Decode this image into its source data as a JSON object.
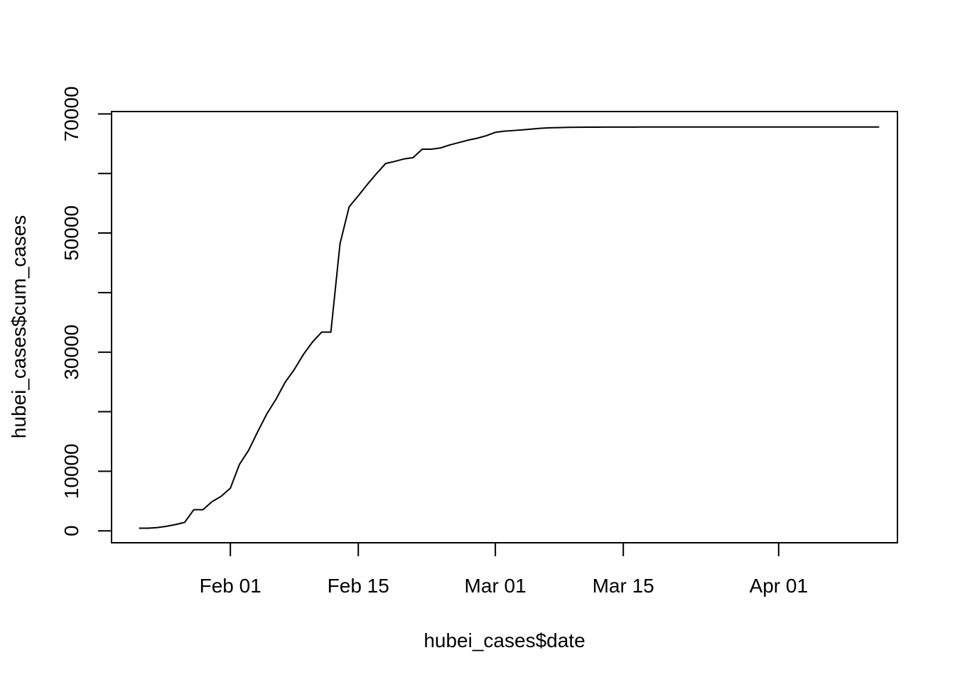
{
  "chart_data": {
    "type": "line",
    "title": "",
    "xlabel": "hubei_cases$date",
    "ylabel": "hubei_cases$cum_cases",
    "x_ticks": [
      {
        "date": "2020-02-01",
        "label": "Feb 01"
      },
      {
        "date": "2020-02-15",
        "label": "Feb 15"
      },
      {
        "date": "2020-03-01",
        "label": "Mar 01"
      },
      {
        "date": "2020-03-15",
        "label": "Mar 15"
      },
      {
        "date": "2020-04-01",
        "label": "Apr 01"
      }
    ],
    "y_ticks": [
      {
        "value": 0,
        "label": "0"
      },
      {
        "value": 10000,
        "label": "10000"
      },
      {
        "value": 30000,
        "label": "30000"
      },
      {
        "value": 50000,
        "label": "50000"
      },
      {
        "value": 70000,
        "label": "70000"
      }
    ],
    "xlim": [
      "2020-01-19",
      "2020-04-14"
    ],
    "ylim": [
      -2000,
      70400
    ],
    "grid": false,
    "line_color": "#000000",
    "series": [
      {
        "x": [
          "2020-01-22",
          "2020-01-23",
          "2020-01-24",
          "2020-01-25",
          "2020-01-26",
          "2020-01-27",
          "2020-01-28",
          "2020-01-29",
          "2020-01-30",
          "2020-01-31",
          "2020-02-01",
          "2020-02-02",
          "2020-02-03",
          "2020-02-04",
          "2020-02-05",
          "2020-02-06",
          "2020-02-07",
          "2020-02-08",
          "2020-02-09",
          "2020-02-10",
          "2020-02-11",
          "2020-02-12",
          "2020-02-13",
          "2020-02-14",
          "2020-02-15",
          "2020-02-16",
          "2020-02-17",
          "2020-02-18",
          "2020-02-19",
          "2020-02-20",
          "2020-02-21",
          "2020-02-22",
          "2020-02-23",
          "2020-02-24",
          "2020-02-25",
          "2020-02-26",
          "2020-02-27",
          "2020-02-28",
          "2020-02-29",
          "2020-03-01",
          "2020-03-02",
          "2020-03-03",
          "2020-03-04",
          "2020-03-05",
          "2020-03-06",
          "2020-03-07",
          "2020-03-08",
          "2020-03-09",
          "2020-03-10",
          "2020-03-11",
          "2020-03-12",
          "2020-03-13",
          "2020-03-14",
          "2020-03-15",
          "2020-03-16",
          "2020-03-17",
          "2020-03-18",
          "2020-03-19",
          "2020-03-20",
          "2020-03-21",
          "2020-03-22",
          "2020-03-23",
          "2020-03-24",
          "2020-03-25",
          "2020-03-26",
          "2020-03-27",
          "2020-03-28",
          "2020-03-29",
          "2020-03-30",
          "2020-03-31",
          "2020-04-01",
          "2020-04-02",
          "2020-04-03",
          "2020-04-04",
          "2020-04-05",
          "2020-04-06",
          "2020-04-07",
          "2020-04-08",
          "2020-04-09",
          "2020-04-10",
          "2020-04-11",
          "2020-04-12"
        ],
        "y": [
          444,
          444,
          549,
          761,
          1058,
          1423,
          3554,
          3554,
          4903,
          5806,
          7153,
          11177,
          13522,
          16678,
          19665,
          22112,
          24953,
          27100,
          29631,
          31728,
          33366,
          33366,
          48206,
          54406,
          56249,
          58182,
          59989,
          61682,
          62031,
          62442,
          62662,
          64084,
          64084,
          64287,
          64786,
          65187,
          65596,
          65914,
          66337,
          66907,
          67103,
          67217,
          67332,
          67466,
          67592,
          67666,
          67707,
          67743,
          67760,
          67773,
          67781,
          67786,
          67790,
          67794,
          67798,
          67799,
          67800,
          67800,
          67800,
          67800,
          67800,
          67800,
          67801,
          67801,
          67801,
          67801,
          67801,
          67801,
          67801,
          67801,
          67802,
          67802,
          67802,
          67803,
          67803,
          67803,
          67803,
          67803,
          67803,
          67803,
          67803,
          67803
        ]
      }
    ]
  }
}
